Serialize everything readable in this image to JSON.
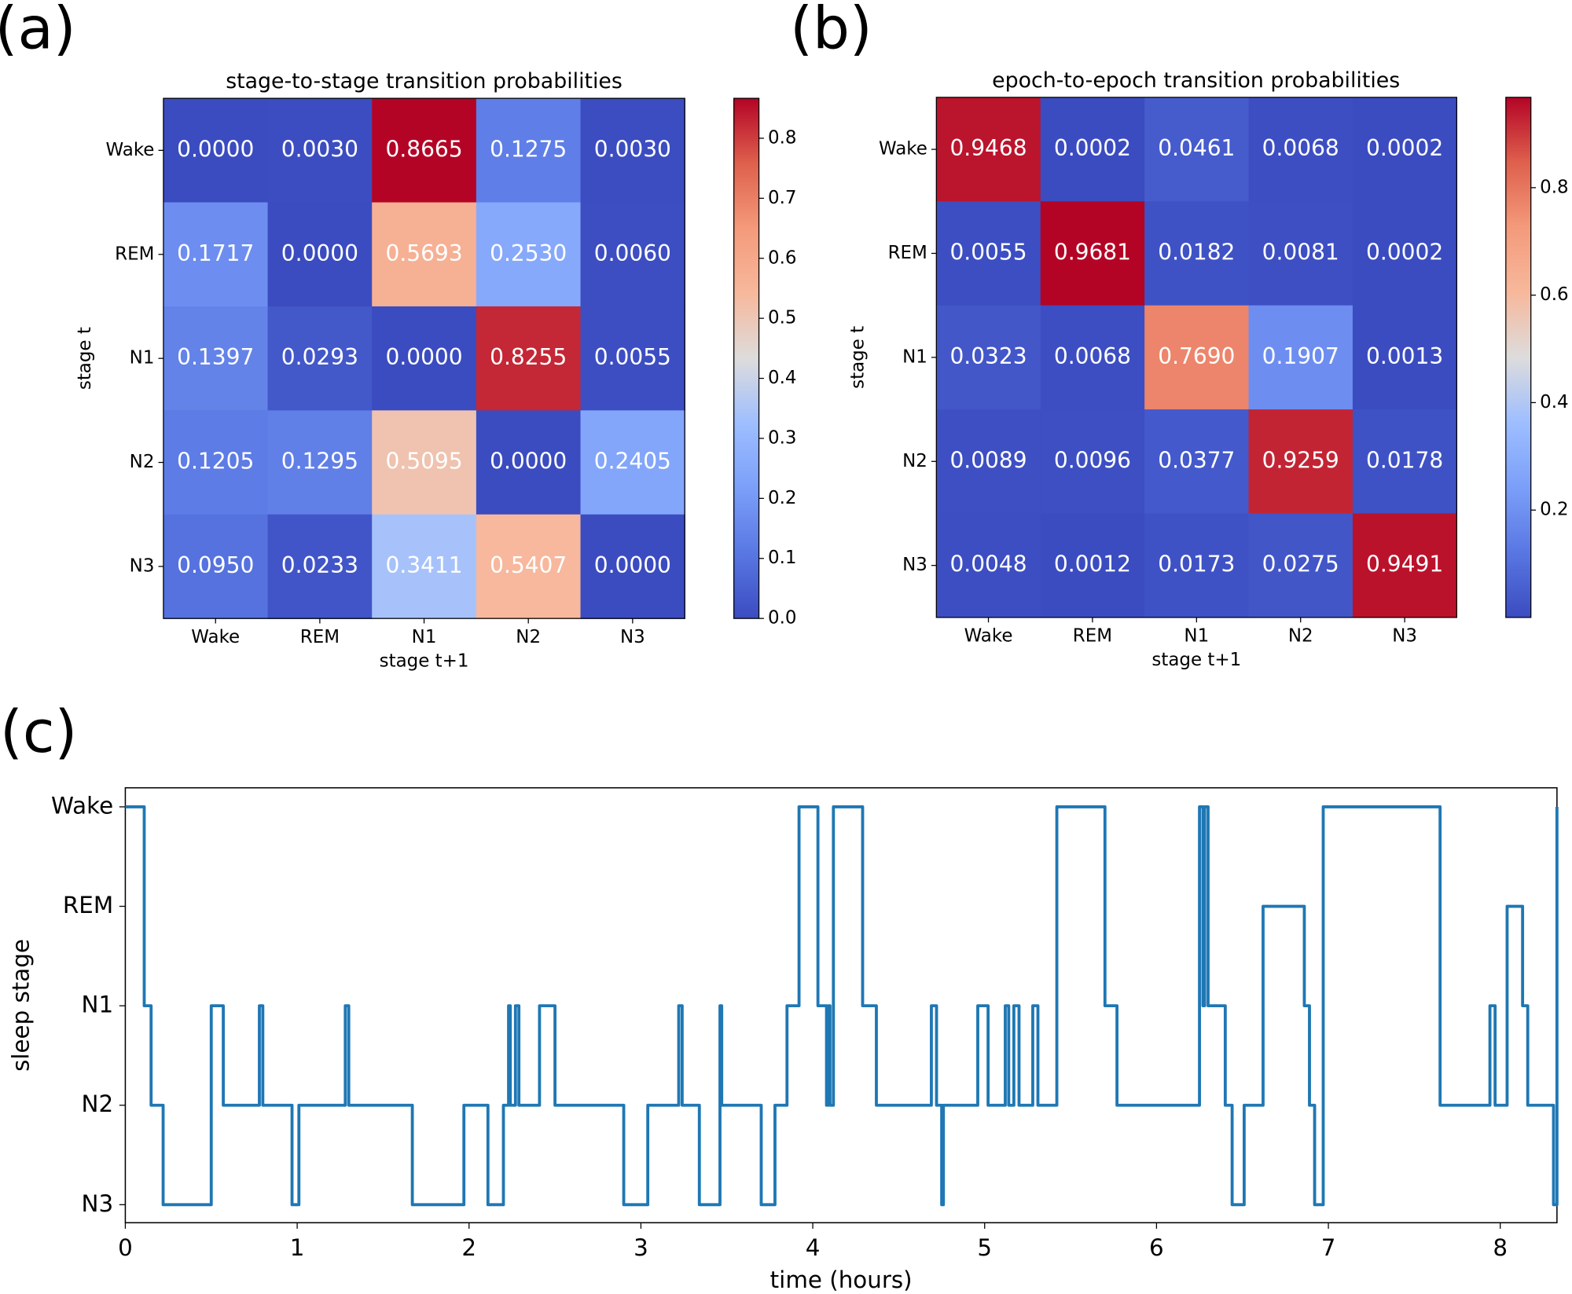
{
  "chart_data": [
    {
      "type": "heatmap",
      "panel_label": "(a)",
      "title": "stage-to-stage transition probabilities",
      "xlabel": "stage t+1",
      "ylabel": "stage t",
      "categories": [
        "Wake",
        "REM",
        "N1",
        "N2",
        "N3"
      ],
      "y_categories": [
        "Wake",
        "REM",
        "N1",
        "N2",
        "N3"
      ],
      "values": [
        [
          0.0,
          0.003,
          0.8665,
          0.1275,
          0.003
        ],
        [
          0.1717,
          0.0,
          0.5693,
          0.253,
          0.006
        ],
        [
          0.1397,
          0.0293,
          0.0,
          0.8255,
          0.0055
        ],
        [
          0.1205,
          0.1295,
          0.5095,
          0.0,
          0.2405
        ],
        [
          0.095,
          0.0233,
          0.3411,
          0.5407,
          0.0
        ]
      ],
      "value_labels": [
        [
          "0.0000",
          "0.0030",
          "0.8665",
          "0.1275",
          "0.0030"
        ],
        [
          "0.1717",
          "0.0000",
          "0.5693",
          "0.2530",
          "0.0060"
        ],
        [
          "0.1397",
          "0.0293",
          "0.0000",
          "0.8255",
          "0.0055"
        ],
        [
          "0.1205",
          "0.1295",
          "0.5095",
          "0.0000",
          "0.2405"
        ],
        [
          "0.0950",
          "0.0233",
          "0.3411",
          "0.5407",
          "0.0000"
        ]
      ],
      "colormap": "coolwarm",
      "clim": [
        0,
        0.8665
      ],
      "cticks": [
        {
          "value": 0,
          "label": "0.0"
        },
        0.1,
        0.2,
        0.3,
        0.4,
        0.5,
        0.6,
        0.7,
        0.8
      ]
    },
    {
      "type": "heatmap",
      "panel_label": "(b)",
      "title": "epoch-to-epoch transition probabilities",
      "xlabel": "stage t+1",
      "ylabel": "stage t",
      "categories": [
        "Wake",
        "REM",
        "N1",
        "N2",
        "N3"
      ],
      "y_categories": [
        "Wake",
        "REM",
        "N1",
        "N2",
        "N3"
      ],
      "values": [
        [
          0.9468,
          0.0002,
          0.0461,
          0.0068,
          0.0002
        ],
        [
          0.0055,
          0.9681,
          0.0182,
          0.0081,
          0.0002
        ],
        [
          0.0323,
          0.0068,
          0.769,
          0.1907,
          0.0013
        ],
        [
          0.0089,
          0.0096,
          0.0377,
          0.9259,
          0.0178
        ],
        [
          0.0048,
          0.0012,
          0.0173,
          0.0275,
          0.9491
        ]
      ],
      "value_labels": [
        [
          "0.9468",
          "0.0002",
          "0.0461",
          "0.0068",
          "0.0002"
        ],
        [
          "0.0055",
          "0.9681",
          "0.0182",
          "0.0081",
          "0.0002"
        ],
        [
          "0.0323",
          "0.0068",
          "0.7690",
          "0.1907",
          "0.0013"
        ],
        [
          "0.0089",
          "0.0096",
          "0.0377",
          "0.9259",
          "0.0178"
        ],
        [
          "0.0048",
          "0.0012",
          "0.0173",
          "0.0275",
          "0.9491"
        ]
      ],
      "colormap": "coolwarm",
      "clim": [
        0.0002,
        0.9681
      ],
      "cticks": [
        0.2,
        0.4,
        0.6,
        0.8
      ]
    },
    {
      "type": "line",
      "panel_label": "(c)",
      "xlabel": "time (hours)",
      "ylabel": "sleep stage",
      "y_categories": [
        "Wake",
        "REM",
        "N1",
        "N2",
        "N3"
      ],
      "color": "#1f77b4",
      "step": "post",
      "xlim": [
        0,
        8.33
      ],
      "xticks": [
        0,
        1,
        2,
        3,
        4,
        5,
        6,
        7,
        8
      ],
      "x": [
        0,
        0.11,
        0.15,
        0.22,
        0.5,
        0.57,
        0.78,
        0.8,
        0.97,
        1.01,
        1.28,
        1.3,
        1.67,
        1.97,
        2.11,
        2.2,
        2.23,
        2.24,
        2.27,
        2.29,
        2.41,
        2.5,
        2.9,
        3.04,
        3.22,
        3.24,
        3.34,
        3.46,
        3.47,
        3.7,
        3.78,
        3.85,
        3.92,
        4.03,
        4.08,
        4.09,
        4.1,
        4.12,
        4.29,
        4.37,
        4.69,
        4.72,
        4.75,
        4.76,
        4.96,
        5.02,
        5.12,
        5.14,
        5.17,
        5.2,
        5.28,
        5.31,
        5.42,
        5.7,
        5.77,
        6.25,
        6.27,
        6.28,
        6.3,
        6.4,
        6.44,
        6.51,
        6.62,
        6.86,
        6.89,
        6.92,
        6.97,
        7.65,
        7.94,
        7.97,
        8.04,
        8.13,
        8.16,
        8.31,
        8.33
      ],
      "values": [
        "Wake",
        "N1",
        "N2",
        "N3",
        "N1",
        "N2",
        "N1",
        "N2",
        "N3",
        "N2",
        "N1",
        "N2",
        "N3",
        "N2",
        "N3",
        "N2",
        "N1",
        "N2",
        "N1",
        "N2",
        "N1",
        "N2",
        "N3",
        "N2",
        "N1",
        "N2",
        "N3",
        "N1",
        "N2",
        "N3",
        "N2",
        "N1",
        "Wake",
        "N1",
        "N2",
        "N1",
        "N2",
        "Wake",
        "N1",
        "N2",
        "N1",
        "N2",
        "N3",
        "N2",
        "N1",
        "N2",
        "N1",
        "N2",
        "N1",
        "N2",
        "N1",
        "N2",
        "Wake",
        "N1",
        "N2",
        "Wake",
        "N1",
        "Wake",
        "N1",
        "N2",
        "N3",
        "N2",
        "REM",
        "N1",
        "N2",
        "N3",
        "Wake",
        "N2",
        "N1",
        "N2",
        "REM",
        "N1",
        "N2",
        "N3",
        "Wake"
      ]
    }
  ]
}
